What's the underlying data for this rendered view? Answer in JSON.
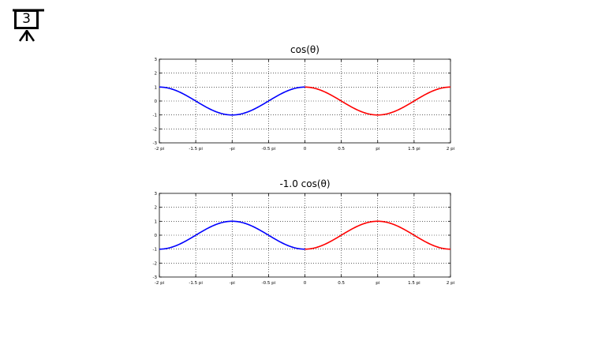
{
  "slide": {
    "number": "3",
    "icon": "presentation-board-icon"
  },
  "colors": {
    "left_half": "#0000ff",
    "right_half": "#ff0000",
    "grid": "#000000",
    "axis": "#000000"
  },
  "chart_data": [
    {
      "type": "line",
      "title": "cos(θ)",
      "function": "cos",
      "amplitude": 1.0,
      "xlim": [
        -6.2832,
        6.2832
      ],
      "ylim": [
        -3,
        3
      ],
      "xticks": [
        "-2 pi",
        "-1.5 pi",
        "-pi",
        "-0.5 pi",
        "0",
        "0.5",
        "pi",
        "1.5 pi",
        "2 pi"
      ],
      "yticks": [
        "3",
        "2",
        "1",
        "0",
        "-1",
        "-2",
        "-3"
      ],
      "grid": true,
      "series": [
        {
          "x_range": [
            -6.2832,
            0
          ],
          "color": "#0000ff"
        },
        {
          "x_range": [
            0,
            6.2832
          ],
          "color": "#ff0000"
        }
      ]
    },
    {
      "type": "line",
      "title": "-1.0 cos(θ)",
      "function": "cos",
      "amplitude": -1.0,
      "xlim": [
        -6.2832,
        6.2832
      ],
      "ylim": [
        -3,
        3
      ],
      "xticks": [
        "-2 pi",
        "-1.5 pi",
        "-pi",
        "-0.5 pi",
        "0",
        "0.5",
        "pi",
        "1.5 pi",
        "2 pi"
      ],
      "yticks": [
        "3",
        "2",
        "1",
        "0",
        "-1",
        "-2",
        "-3"
      ],
      "grid": true,
      "series": [
        {
          "x_range": [
            -6.2832,
            0
          ],
          "color": "#0000ff"
        },
        {
          "x_range": [
            0,
            6.2832
          ],
          "color": "#ff0000"
        }
      ]
    }
  ]
}
